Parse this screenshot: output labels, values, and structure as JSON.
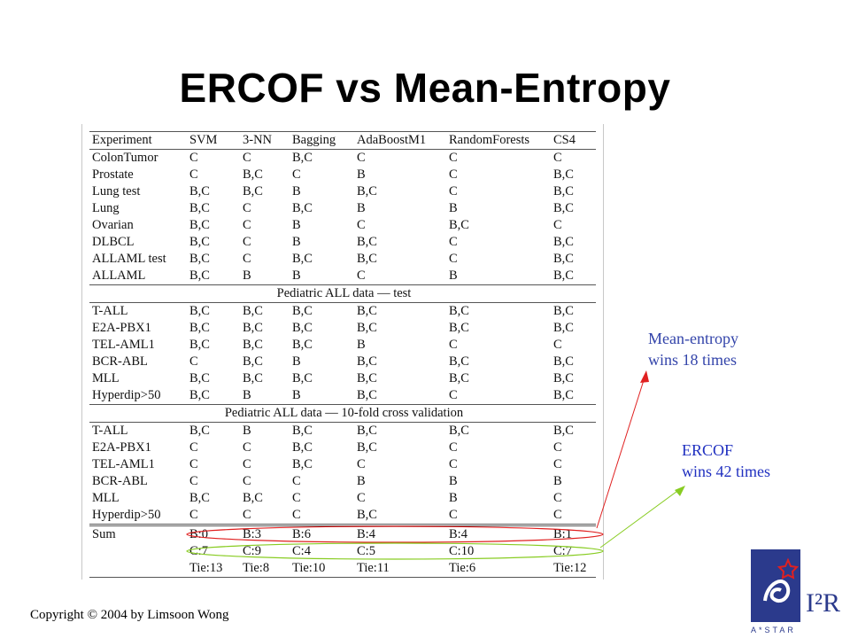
{
  "slide": {
    "title": "ERCOF vs Mean-Entropy",
    "copyright": "Copyright © 2004 by Limsoon Wong"
  },
  "table": {
    "headers": [
      "Experiment",
      "SVM",
      "3-NN",
      "Bagging",
      "AdaBoostM1",
      "RandomForests",
      "CS4"
    ],
    "group1": [
      [
        "ColonTumor",
        "C",
        "C",
        "B,C",
        "C",
        "C",
        "C"
      ],
      [
        "Prostate",
        "C",
        "B,C",
        "C",
        "B",
        "C",
        "B,C"
      ],
      [
        "Lung test",
        "B,C",
        "B,C",
        "B",
        "B,C",
        "C",
        "B,C"
      ],
      [
        "Lung",
        "B,C",
        "C",
        "B,C",
        "B",
        "B",
        "B,C"
      ],
      [
        "Ovarian",
        "B,C",
        "C",
        "B",
        "C",
        "B,C",
        "C"
      ],
      [
        "DLBCL",
        "B,C",
        "C",
        "B",
        "B,C",
        "C",
        "B,C"
      ],
      [
        "ALLAML test",
        "B,C",
        "C",
        "B,C",
        "B,C",
        "C",
        "B,C"
      ],
      [
        "ALLAML",
        "B,C",
        "B",
        "B",
        "C",
        "B",
        "B,C"
      ]
    ],
    "section2_title": "Pediatric ALL data — test",
    "group2": [
      [
        "T-ALL",
        "B,C",
        "B,C",
        "B,C",
        "B,C",
        "B,C",
        "B,C"
      ],
      [
        "E2A-PBX1",
        "B,C",
        "B,C",
        "B,C",
        "B,C",
        "B,C",
        "B,C"
      ],
      [
        "TEL-AML1",
        "B,C",
        "B,C",
        "B,C",
        "B",
        "C",
        "C"
      ],
      [
        "BCR-ABL",
        "C",
        "B,C",
        "B",
        "B,C",
        "B,C",
        "B,C"
      ],
      [
        "MLL",
        "B,C",
        "B,C",
        "B,C",
        "B,C",
        "B,C",
        "B,C"
      ],
      [
        "Hyperdip>50",
        "B,C",
        "B",
        "B",
        "B,C",
        "C",
        "B,C"
      ]
    ],
    "section3_title": "Pediatric ALL data — 10-fold cross validation",
    "group3": [
      [
        "T-ALL",
        "B,C",
        "B",
        "B,C",
        "B,C",
        "B,C",
        "B,C"
      ],
      [
        "E2A-PBX1",
        "C",
        "C",
        "B,C",
        "B,C",
        "C",
        "C"
      ],
      [
        "TEL-AML1",
        "C",
        "C",
        "B,C",
        "C",
        "C",
        "C"
      ],
      [
        "BCR-ABL",
        "C",
        "C",
        "C",
        "B",
        "B",
        "B"
      ],
      [
        "MLL",
        "B,C",
        "B,C",
        "C",
        "C",
        "B",
        "C"
      ],
      [
        "Hyperdip>50",
        "C",
        "C",
        "C",
        "B,C",
        "C",
        "C"
      ]
    ],
    "sum_rows": [
      [
        "Sum",
        "B:0",
        "B:3",
        "B:6",
        "B:4",
        "B:4",
        "B:1"
      ],
      [
        "",
        "C:7",
        "C:9",
        "C:4",
        "C:5",
        "C:10",
        "C:7"
      ],
      [
        "",
        "Tie:13",
        "Tie:8",
        "Tie:10",
        "Tie:11",
        "Tie:6",
        "Tie:12"
      ]
    ]
  },
  "annotations": {
    "mean_entropy": {
      "line1": "Mean-entropy",
      "line2": "wins 18 times",
      "color": "#3344aa",
      "arrow_color": "#e02020"
    },
    "ercof": {
      "line1": "ERCOF",
      "line2": "wins 42 times",
      "color": "#2030c0",
      "arrow_color": "#88cc22"
    }
  },
  "logo": {
    "text": "I²R",
    "subtext": "A*STAR",
    "brand_color": "#2b3a8c",
    "star_color": "#e02020"
  }
}
